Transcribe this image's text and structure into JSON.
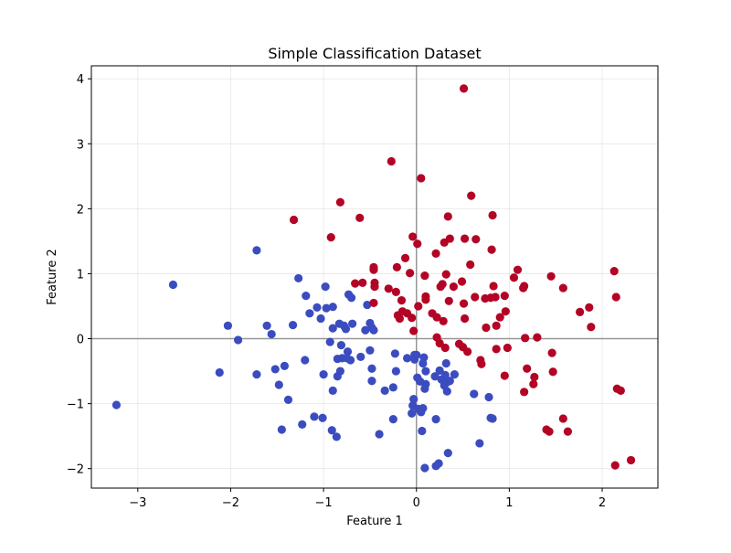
{
  "chart_data": {
    "type": "scatter",
    "title": "Simple Classification Dataset",
    "xlabel": "Feature 1",
    "ylabel": "Feature 2",
    "xlim": [
      -3.5,
      2.6
    ],
    "ylim": [
      -2.3,
      4.2
    ],
    "xticks": [
      -3,
      -2,
      -1,
      0,
      1,
      2
    ],
    "yticks": [
      -2,
      -1,
      0,
      1,
      2,
      3,
      4
    ],
    "xtick_labels": [
      "−3",
      "−2",
      "−1",
      "0",
      "1",
      "2"
    ],
    "ytick_labels": [
      "−2",
      "−1",
      "0",
      "1",
      "2",
      "3",
      "4"
    ],
    "grid": true,
    "zero_lines": true,
    "series": [
      {
        "class": 0,
        "color": "#3b4cc0",
        "points": [
          [
            -3.23,
            -1.02
          ],
          [
            -2.62,
            0.83
          ],
          [
            -2.12,
            -0.52
          ],
          [
            -2.03,
            0.2
          ],
          [
            -1.92,
            -0.02
          ],
          [
            -1.72,
            1.36
          ],
          [
            -1.72,
            -0.55
          ],
          [
            -1.61,
            0.2
          ],
          [
            -1.56,
            0.07
          ],
          [
            -1.52,
            -0.47
          ],
          [
            -1.48,
            -0.71
          ],
          [
            -1.45,
            -1.4
          ],
          [
            -1.42,
            -0.42
          ],
          [
            -1.38,
            -0.94
          ],
          [
            -1.33,
            0.21
          ],
          [
            -1.27,
            0.93
          ],
          [
            -1.23,
            -1.32
          ],
          [
            -1.2,
            -0.33
          ],
          [
            -1.19,
            0.66
          ],
          [
            -1.15,
            0.39
          ],
          [
            -1.1,
            -1.2
          ],
          [
            -1.07,
            0.48
          ],
          [
            -1.03,
            0.31
          ],
          [
            -1.01,
            -1.22
          ],
          [
            -1.0,
            -0.55
          ],
          [
            -0.98,
            0.8
          ],
          [
            -0.97,
            0.47
          ],
          [
            -0.93,
            -0.05
          ],
          [
            -0.91,
            -1.41
          ],
          [
            -0.9,
            -0.8
          ],
          [
            -0.9,
            0.49
          ],
          [
            -0.9,
            0.16
          ],
          [
            -0.86,
            -1.51
          ],
          [
            -0.85,
            -0.31
          ],
          [
            -0.85,
            -0.58
          ],
          [
            -0.83,
            0.23
          ],
          [
            -0.82,
            -0.5
          ],
          [
            -0.81,
            -0.1
          ],
          [
            -0.8,
            -0.3
          ],
          [
            -0.78,
            0.2
          ],
          [
            -0.76,
            0.15
          ],
          [
            -0.75,
            -0.3
          ],
          [
            -0.74,
            -0.2
          ],
          [
            -0.73,
            0.68
          ],
          [
            -0.71,
            -0.33
          ],
          [
            -0.7,
            0.63
          ],
          [
            -0.69,
            0.23
          ],
          [
            -0.6,
            -0.28
          ],
          [
            -0.55,
            0.13
          ],
          [
            -0.53,
            0.52
          ],
          [
            -0.5,
            -0.18
          ],
          [
            -0.5,
            0.24
          ],
          [
            -0.48,
            -0.65
          ],
          [
            -0.48,
            -0.46
          ],
          [
            -0.48,
            0.17
          ],
          [
            -0.46,
            0.13
          ],
          [
            -0.4,
            -1.47
          ],
          [
            -0.34,
            -0.8
          ],
          [
            -0.25,
            -1.24
          ],
          [
            -0.25,
            -0.75
          ],
          [
            -0.22,
            -0.5
          ],
          [
            -0.23,
            -0.23
          ],
          [
            -0.1,
            -0.3
          ],
          [
            -0.05,
            -1.15
          ],
          [
            -0.04,
            -1.03
          ],
          [
            -0.03,
            -0.93
          ],
          [
            -0.02,
            -0.32
          ],
          [
            -0.02,
            -0.25
          ],
          [
            0.0,
            -0.25
          ],
          [
            0.01,
            -0.6
          ],
          [
            0.02,
            -1.08
          ],
          [
            0.04,
            -0.66
          ],
          [
            0.05,
            -1.13
          ],
          [
            0.06,
            -1.42
          ],
          [
            0.07,
            -1.07
          ],
          [
            0.07,
            -0.38
          ],
          [
            0.08,
            -0.29
          ],
          [
            0.09,
            -0.77
          ],
          [
            0.09,
            -1.99
          ],
          [
            0.1,
            -0.5
          ],
          [
            0.1,
            -0.7
          ],
          [
            0.2,
            -0.58
          ],
          [
            0.21,
            -1.96
          ],
          [
            0.21,
            -1.24
          ],
          [
            0.24,
            -1.92
          ],
          [
            0.25,
            -0.49
          ],
          [
            0.27,
            -0.63
          ],
          [
            0.3,
            -0.72
          ],
          [
            0.31,
            -0.56
          ],
          [
            0.32,
            -0.38
          ],
          [
            0.33,
            -0.81
          ],
          [
            0.33,
            -0.67
          ],
          [
            0.34,
            -1.76
          ],
          [
            0.36,
            -0.65
          ],
          [
            0.41,
            -0.55
          ],
          [
            0.62,
            -0.85
          ],
          [
            0.68,
            -1.61
          ],
          [
            0.78,
            -0.9
          ],
          [
            0.8,
            -1.22
          ],
          [
            0.82,
            -1.23
          ]
        ]
      },
      {
        "class": 1,
        "color": "#b40426",
        "points": [
          [
            -1.32,
            1.83
          ],
          [
            -0.92,
            1.56
          ],
          [
            -0.82,
            2.1
          ],
          [
            -0.66,
            0.85
          ],
          [
            -0.61,
            1.86
          ],
          [
            -0.58,
            0.86
          ],
          [
            -0.46,
            1.1
          ],
          [
            -0.46,
            1.06
          ],
          [
            -0.45,
            0.86
          ],
          [
            -0.45,
            0.8
          ],
          [
            -0.46,
            0.55
          ],
          [
            -0.3,
            0.77
          ],
          [
            -0.27,
            2.73
          ],
          [
            -0.22,
            0.72
          ],
          [
            -0.21,
            1.1
          ],
          [
            -0.2,
            0.36
          ],
          [
            -0.18,
            0.31
          ],
          [
            -0.16,
            0.59
          ],
          [
            -0.15,
            0.42
          ],
          [
            -0.12,
            1.24
          ],
          [
            -0.1,
            0.39
          ],
          [
            -0.07,
            1.01
          ],
          [
            -0.05,
            0.32
          ],
          [
            -0.04,
            1.57
          ],
          [
            -0.03,
            0.12
          ],
          [
            0.01,
            1.46
          ],
          [
            0.02,
            0.5
          ],
          [
            0.05,
            2.47
          ],
          [
            0.09,
            0.97
          ],
          [
            0.1,
            0.65
          ],
          [
            0.1,
            0.6
          ],
          [
            0.17,
            0.39
          ],
          [
            0.21,
            1.31
          ],
          [
            0.22,
            0.02
          ],
          [
            0.22,
            0.33
          ],
          [
            0.25,
            -0.07
          ],
          [
            0.26,
            0.8
          ],
          [
            0.28,
            0.84
          ],
          [
            0.29,
            0.27
          ],
          [
            0.3,
            1.48
          ],
          [
            0.31,
            -0.14
          ],
          [
            0.32,
            0.99
          ],
          [
            0.34,
            1.88
          ],
          [
            0.35,
            0.58
          ],
          [
            0.36,
            1.54
          ],
          [
            0.4,
            0.8
          ],
          [
            0.46,
            -0.08
          ],
          [
            0.49,
            0.88
          ],
          [
            0.5,
            -0.13
          ],
          [
            0.51,
            3.85
          ],
          [
            0.51,
            0.54
          ],
          [
            0.52,
            1.54
          ],
          [
            0.52,
            0.31
          ],
          [
            0.55,
            -0.2
          ],
          [
            0.58,
            1.14
          ],
          [
            0.59,
            2.2
          ],
          [
            0.63,
            0.64
          ],
          [
            0.64,
            1.53
          ],
          [
            0.69,
            -0.33
          ],
          [
            0.7,
            -0.39
          ],
          [
            0.74,
            0.62
          ],
          [
            0.75,
            0.17
          ],
          [
            0.8,
            0.63
          ],
          [
            0.81,
            1.37
          ],
          [
            0.82,
            1.9
          ],
          [
            0.83,
            0.81
          ],
          [
            0.85,
            0.64
          ],
          [
            0.86,
            0.2
          ],
          [
            0.86,
            -0.16
          ],
          [
            0.9,
            0.33
          ],
          [
            0.95,
            -0.57
          ],
          [
            0.95,
            0.66
          ],
          [
            0.96,
            0.42
          ],
          [
            0.98,
            -0.14
          ],
          [
            1.05,
            0.94
          ],
          [
            1.09,
            1.06
          ],
          [
            1.15,
            0.78
          ],
          [
            1.16,
            0.81
          ],
          [
            1.16,
            -0.82
          ],
          [
            1.17,
            0.01
          ],
          [
            1.19,
            -0.46
          ],
          [
            1.26,
            -0.7
          ],
          [
            1.27,
            -0.59
          ],
          [
            1.3,
            0.02
          ],
          [
            1.4,
            -1.4
          ],
          [
            1.43,
            -1.43
          ],
          [
            1.45,
            0.96
          ],
          [
            1.46,
            -0.22
          ],
          [
            1.47,
            -0.51
          ],
          [
            1.58,
            0.78
          ],
          [
            1.58,
            -1.23
          ],
          [
            1.63,
            -1.43
          ],
          [
            1.76,
            0.41
          ],
          [
            1.86,
            0.48
          ],
          [
            1.88,
            0.18
          ],
          [
            2.13,
            1.04
          ],
          [
            2.14,
            -1.95
          ],
          [
            2.15,
            0.64
          ],
          [
            2.16,
            -0.77
          ],
          [
            2.2,
            -0.8
          ],
          [
            2.31,
            -1.87
          ]
        ]
      }
    ]
  }
}
